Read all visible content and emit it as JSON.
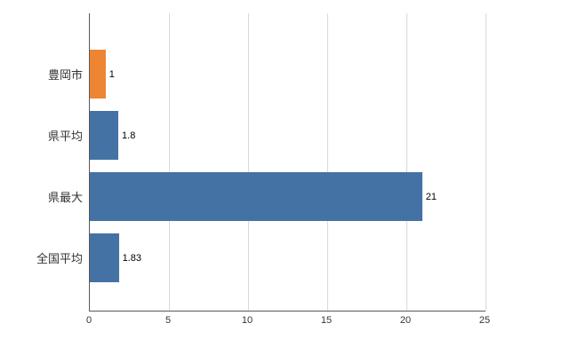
{
  "chart_data": {
    "type": "bar",
    "orientation": "horizontal",
    "title": "",
    "xlabel": "",
    "ylabel": "",
    "categories": [
      "豊岡市",
      "県平均",
      "県最大",
      "全国平均"
    ],
    "values": [
      1,
      1.8,
      21,
      1.83
    ],
    "value_labels": [
      "1",
      "1.8",
      "21",
      "1.83"
    ],
    "bar_colors": [
      "#ee8533",
      "#4472a4",
      "#4472a4",
      "#4472a4"
    ],
    "x_ticks": [
      0,
      5,
      10,
      15,
      20,
      25
    ],
    "xlim": [
      0,
      25
    ],
    "grid": "vertical",
    "legend": "none"
  },
  "colors": {
    "highlight_bar": "#ee8533",
    "default_bar": "#4472a4",
    "gridline": "#d9d9d9",
    "axis": "#595959",
    "background": "#ffffff"
  }
}
